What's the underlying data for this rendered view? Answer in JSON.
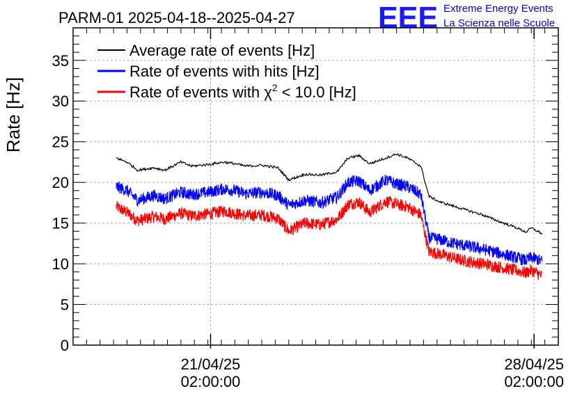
{
  "chart_data": {
    "type": "line",
    "title": "PARM-01 2025-04-18--2025-04-27",
    "xlabel": "",
    "ylabel": "Rate [Hz]",
    "xlim_days": [
      0,
      9
    ],
    "ylim": [
      0,
      39
    ],
    "yticks": [
      0,
      5,
      10,
      15,
      20,
      25,
      30,
      35
    ],
    "xticks": [
      {
        "day": 2.55,
        "date": "21/04/25",
        "time": "02:00:00"
      },
      {
        "day": 8.55,
        "date": "28/04/25",
        "time": "02:00:00"
      }
    ],
    "grid": true,
    "legend_position": "top-left",
    "x_days": [
      0.8,
      1.0,
      1.2,
      1.5,
      1.7,
      2.0,
      2.2,
      2.5,
      2.8,
      3.0,
      3.2,
      3.5,
      3.8,
      4.0,
      4.3,
      4.6,
      4.9,
      5.1,
      5.3,
      5.5,
      5.8,
      6.0,
      6.2,
      6.45,
      6.6,
      6.8,
      7.0,
      7.3,
      7.6,
      7.9,
      8.2,
      8.4,
      8.5,
      8.7
    ],
    "series": [
      {
        "name": "Average rate of events [Hz]",
        "color": "#000000",
        "values": [
          23.0,
          22.5,
          21.5,
          21.8,
          21.5,
          22.5,
          22.0,
          22.2,
          22.5,
          22.3,
          22.0,
          22.1,
          21.8,
          20.3,
          21.0,
          20.9,
          21.3,
          23.0,
          23.3,
          22.3,
          23.0,
          23.5,
          23.0,
          22.0,
          18.3,
          17.6,
          17.2,
          16.6,
          16.0,
          15.2,
          14.5,
          13.9,
          14.4,
          13.7
        ],
        "noise": 0.15
      },
      {
        "name": "Rate of events with hits [Hz]",
        "color": "#0000ff",
        "values": [
          19.5,
          19.0,
          17.8,
          18.4,
          18.0,
          18.8,
          18.5,
          18.8,
          19.2,
          19.0,
          18.6,
          18.8,
          18.4,
          17.2,
          17.8,
          17.5,
          18.2,
          20.0,
          20.2,
          19.0,
          20.3,
          19.8,
          19.5,
          18.5,
          13.2,
          13.0,
          12.6,
          12.2,
          11.8,
          11.3,
          10.8,
          10.4,
          10.8,
          10.3
        ],
        "noise": 0.75
      },
      {
        "name": "Rate of events with χ² < 10.0 [Hz]",
        "color": "#ff0000",
        "values": [
          17.0,
          16.3,
          15.3,
          15.8,
          15.5,
          16.2,
          15.9,
          16.1,
          16.5,
          16.2,
          15.9,
          16.0,
          15.6,
          14.0,
          15.0,
          14.8,
          15.5,
          17.3,
          17.6,
          16.3,
          17.7,
          17.3,
          17.0,
          16.0,
          11.5,
          11.2,
          10.8,
          10.3,
          10.0,
          9.6,
          9.2,
          8.9,
          9.2,
          8.5
        ],
        "noise": 0.75
      }
    ]
  },
  "legend": {
    "avg_label": "Average rate of events [Hz]",
    "hits_label": "Rate of events with hits [Hz]",
    "chi_prefix": "Rate of events with χ",
    "chi_sup": "2",
    "chi_suffix": " < 10.0 [Hz]"
  },
  "logo": {
    "mark": "EEE",
    "line1": "Extreme Energy Events",
    "line2": "La Scienza nelle Scuole"
  }
}
